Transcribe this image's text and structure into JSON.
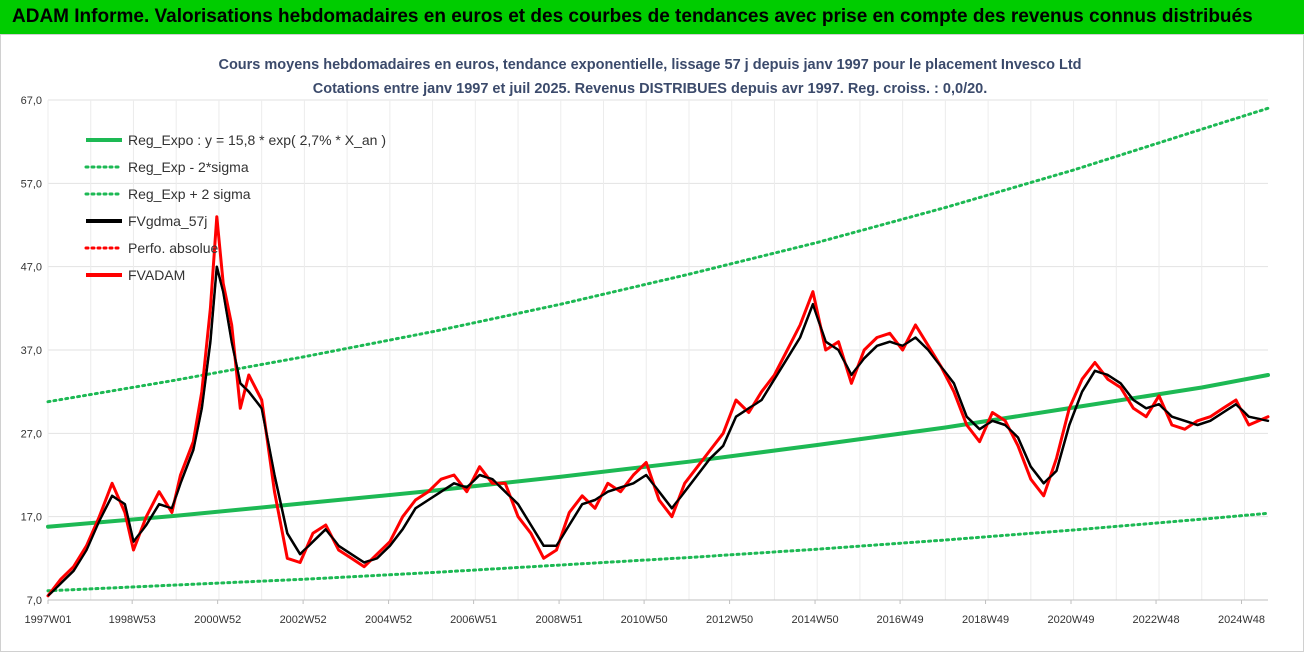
{
  "header": {
    "title": "ADAM Informe. Valorisations hebdomadaires en euros et des courbes de tendances avec prise en compte des revenus connus distribués"
  },
  "colors": {
    "header_bg": "#00cc00",
    "reg": "#1db954",
    "fv": "#000000",
    "adam": "#ff0000",
    "title": "#3b4a6b"
  },
  "chart_data": {
    "type": "line",
    "title": "Cours moyens hebdomadaires en euros, tendance exponentielle, lissage 57 j depuis janv 1997 pour le placement Invesco Ltd",
    "subtitle": "Cotations entre janv 1997 et juil 2025. Revenus DISTRIBUES depuis avr 1997.  Reg. croiss. : 0,0/20.",
    "ylim": [
      7,
      67
    ],
    "yticks": [
      "7,0",
      "17,0",
      "27,0",
      "37,0",
      "47,0",
      "57,0",
      "67,0"
    ],
    "xlim": [
      1997.0,
      2025.55
    ],
    "xticks": [
      {
        "label": "1997W01",
        "x": 1997.0
      },
      {
        "label": "1998W53",
        "x": 1998.97
      },
      {
        "label": "2000W52",
        "x": 2000.97
      },
      {
        "label": "2002W52",
        "x": 2002.97
      },
      {
        "label": "2004W52",
        "x": 2004.97
      },
      {
        "label": "2006W51",
        "x": 2006.96
      },
      {
        "label": "2008W51",
        "x": 2008.96
      },
      {
        "label": "2010W50",
        "x": 2010.95
      },
      {
        "label": "2012W50",
        "x": 2012.95
      },
      {
        "label": "2014W50",
        "x": 2014.95
      },
      {
        "label": "2016W49",
        "x": 2016.94
      },
      {
        "label": "2018W49",
        "x": 2018.94
      },
      {
        "label": "2020W49",
        "x": 2020.94
      },
      {
        "label": "2022W48",
        "x": 2022.93
      },
      {
        "label": "2024W48",
        "x": 2024.93
      }
    ],
    "grid": true,
    "legend": {
      "placement": "top-left"
    },
    "series": [
      {
        "name": "Reg_Expo : y = 15,8 * exp( 2,7% *  X_an )",
        "color": "#1db954",
        "style": "solid",
        "x": [
          1997.0,
          2000.0,
          2003.0,
          2006.0,
          2009.0,
          2012.0,
          2015.0,
          2018.0,
          2021.0,
          2024.0,
          2025.55
        ],
        "y": [
          15.8,
          17.1,
          18.6,
          20.1,
          21.8,
          23.6,
          25.6,
          27.7,
          30.1,
          32.5,
          34.0
        ]
      },
      {
        "name": "Reg_Exp - 2*sigma",
        "color": "#1db954",
        "style": "dotted",
        "x": [
          1997.0,
          2000.0,
          2003.0,
          2006.0,
          2009.0,
          2012.0,
          2015.0,
          2018.0,
          2021.0,
          2024.0,
          2025.55
        ],
        "y": [
          8.1,
          8.8,
          9.5,
          10.3,
          11.2,
          12.1,
          13.1,
          14.2,
          15.4,
          16.7,
          17.4
        ]
      },
      {
        "name": "Reg_Exp + 2 sigma",
        "color": "#1db954",
        "style": "dotted",
        "x": [
          1997.0,
          2000.0,
          2003.0,
          2006.0,
          2009.0,
          2012.0,
          2015.0,
          2018.0,
          2021.0,
          2024.0,
          2025.55
        ],
        "y": [
          30.8,
          33.4,
          36.2,
          39.2,
          42.5,
          46.1,
          49.9,
          54.1,
          58.6,
          63.5,
          66.0
        ]
      },
      {
        "name": "FVgdma_57j",
        "color": "#000000",
        "style": "solid",
        "x": [
          1997.0,
          1997.3,
          1997.6,
          1997.9,
          1998.2,
          1998.5,
          1998.8,
          1999.0,
          1999.3,
          1999.6,
          1999.9,
          2000.1,
          2000.4,
          2000.6,
          2000.8,
          2000.95,
          2001.1,
          2001.3,
          2001.5,
          2001.7,
          2002.0,
          2002.3,
          2002.6,
          2002.9,
          2003.2,
          2003.5,
          2003.8,
          2004.1,
          2004.4,
          2004.7,
          2005.0,
          2005.3,
          2005.6,
          2005.9,
          2006.2,
          2006.5,
          2006.8,
          2007.1,
          2007.4,
          2007.7,
          2008.0,
          2008.3,
          2008.6,
          2008.9,
          2009.2,
          2009.5,
          2009.8,
          2010.1,
          2010.4,
          2010.7,
          2011.0,
          2011.3,
          2011.6,
          2011.9,
          2012.2,
          2012.5,
          2012.8,
          2013.1,
          2013.4,
          2013.7,
          2014.0,
          2014.3,
          2014.6,
          2014.9,
          2015.2,
          2015.5,
          2015.8,
          2016.1,
          2016.4,
          2016.7,
          2017.0,
          2017.3,
          2017.6,
          2017.9,
          2018.2,
          2018.5,
          2018.8,
          2019.1,
          2019.4,
          2019.7,
          2020.0,
          2020.3,
          2020.6,
          2020.9,
          2021.2,
          2021.5,
          2021.8,
          2022.1,
          2022.4,
          2022.7,
          2023.0,
          2023.3,
          2023.6,
          2023.9,
          2024.2,
          2024.5,
          2024.8,
          2025.1,
          2025.55
        ],
        "y": [
          7.5,
          9.0,
          10.5,
          13.0,
          16.5,
          19.5,
          18.5,
          14.0,
          16.0,
          18.5,
          18.0,
          21.0,
          25.0,
          30.0,
          38.0,
          47.0,
          44.0,
          38.0,
          33.0,
          32.0,
          30.0,
          22.0,
          15.0,
          12.5,
          14.0,
          15.5,
          13.5,
          12.5,
          11.5,
          12.0,
          13.5,
          15.5,
          18.0,
          19.0,
          20.0,
          21.0,
          20.5,
          22.0,
          21.5,
          20.0,
          18.5,
          16.0,
          13.5,
          13.5,
          16.0,
          18.5,
          19.0,
          20.0,
          20.5,
          21.0,
          22.0,
          20.0,
          18.0,
          20.0,
          22.0,
          24.0,
          25.5,
          29.0,
          30.0,
          31.0,
          33.5,
          36.0,
          38.5,
          42.5,
          38.0,
          37.0,
          34.0,
          36.0,
          37.5,
          38.0,
          37.5,
          38.5,
          37.0,
          35.0,
          33.0,
          29.0,
          27.5,
          28.5,
          28.0,
          26.5,
          23.0,
          21.0,
          22.5,
          28.0,
          32.0,
          34.5,
          34.0,
          33.0,
          31.0,
          30.0,
          30.5,
          29.0,
          28.5,
          28.0,
          28.5,
          29.5,
          30.5,
          29.0,
          28.5
        ]
      },
      {
        "name": "Perfo. absolue",
        "color": "#ff0000",
        "style": "dotted",
        "x": [
          1997.0,
          1997.3,
          1997.6,
          1997.9,
          1998.2,
          1998.5,
          1998.8,
          1999.0,
          1999.3,
          1999.6,
          1999.9,
          2000.1,
          2000.4,
          2000.6,
          2000.8,
          2000.95,
          2001.1,
          2001.3,
          2001.5,
          2001.7,
          2002.0,
          2002.3,
          2002.6,
          2002.9,
          2003.2,
          2003.5,
          2003.8,
          2004.1,
          2004.4,
          2004.7,
          2005.0,
          2005.3,
          2005.6,
          2005.9,
          2006.2,
          2006.5,
          2006.8,
          2007.1,
          2007.4,
          2007.7,
          2008.0,
          2008.3,
          2008.6,
          2008.9,
          2009.2,
          2009.5,
          2009.8,
          2010.1,
          2010.4,
          2010.7,
          2011.0,
          2011.3,
          2011.6,
          2011.9,
          2012.2,
          2012.5,
          2012.8,
          2013.1,
          2013.4,
          2013.7,
          2014.0,
          2014.3,
          2014.6,
          2014.9,
          2015.2,
          2015.5,
          2015.8,
          2016.1,
          2016.4,
          2016.7,
          2017.0,
          2017.3,
          2017.6,
          2017.9,
          2018.2,
          2018.5,
          2018.8,
          2019.1,
          2019.4,
          2019.7,
          2020.0,
          2020.3,
          2020.6,
          2020.9,
          2021.2,
          2021.5,
          2021.8,
          2022.1,
          2022.4,
          2022.7,
          2023.0,
          2023.3,
          2023.6,
          2023.9,
          2024.2,
          2024.5,
          2024.8,
          2025.1,
          2025.55
        ],
        "y": [
          7.5,
          9.5,
          11.0,
          13.5,
          17.0,
          21.0,
          17.5,
          13.0,
          17.0,
          20.0,
          17.5,
          22.0,
          26.0,
          32.0,
          42.0,
          53.0,
          45.0,
          40.0,
          30.0,
          34.0,
          31.0,
          20.0,
          12.0,
          11.5,
          15.0,
          16.0,
          13.0,
          12.0,
          11.0,
          12.5,
          14.0,
          17.0,
          19.0,
          20.0,
          21.5,
          22.0,
          20.0,
          23.0,
          21.0,
          21.0,
          17.0,
          15.0,
          12.0,
          13.0,
          17.5,
          19.5,
          18.0,
          21.0,
          20.0,
          22.0,
          23.5,
          19.0,
          17.0,
          21.0,
          23.0,
          25.0,
          27.0,
          31.0,
          29.5,
          32.0,
          34.0,
          37.0,
          40.0,
          44.0,
          37.0,
          38.0,
          33.0,
          37.0,
          38.5,
          39.0,
          37.0,
          40.0,
          37.5,
          35.0,
          32.0,
          28.0,
          26.0,
          29.5,
          28.5,
          25.5,
          21.5,
          19.5,
          24.0,
          30.0,
          33.5,
          35.5,
          33.5,
          32.5,
          30.0,
          29.0,
          31.5,
          28.0,
          27.5,
          28.5,
          29.0,
          30.0,
          31.0,
          28.0,
          29.0
        ]
      },
      {
        "name": "FVADAM",
        "color": "#ff0000",
        "style": "solid",
        "x": [
          1997.0,
          1997.3,
          1997.6,
          1997.9,
          1998.2,
          1998.5,
          1998.8,
          1999.0,
          1999.3,
          1999.6,
          1999.9,
          2000.1,
          2000.4,
          2000.6,
          2000.8,
          2000.95,
          2001.1,
          2001.3,
          2001.5,
          2001.7,
          2002.0,
          2002.3,
          2002.6,
          2002.9,
          2003.2,
          2003.5,
          2003.8,
          2004.1,
          2004.4,
          2004.7,
          2005.0,
          2005.3,
          2005.6,
          2005.9,
          2006.2,
          2006.5,
          2006.8,
          2007.1,
          2007.4,
          2007.7,
          2008.0,
          2008.3,
          2008.6,
          2008.9,
          2009.2,
          2009.5,
          2009.8,
          2010.1,
          2010.4,
          2010.7,
          2011.0,
          2011.3,
          2011.6,
          2011.9,
          2012.2,
          2012.5,
          2012.8,
          2013.1,
          2013.4,
          2013.7,
          2014.0,
          2014.3,
          2014.6,
          2014.9,
          2015.2,
          2015.5,
          2015.8,
          2016.1,
          2016.4,
          2016.7,
          2017.0,
          2017.3,
          2017.6,
          2017.9,
          2018.2,
          2018.5,
          2018.8,
          2019.1,
          2019.4,
          2019.7,
          2020.0,
          2020.3,
          2020.6,
          2020.9,
          2021.2,
          2021.5,
          2021.8,
          2022.1,
          2022.4,
          2022.7,
          2023.0,
          2023.3,
          2023.6,
          2023.9,
          2024.2,
          2024.5,
          2024.8,
          2025.1,
          2025.55
        ],
        "y": [
          7.5,
          9.5,
          11.0,
          13.5,
          17.0,
          21.0,
          17.5,
          13.0,
          17.0,
          20.0,
          17.5,
          22.0,
          26.0,
          32.0,
          42.0,
          53.0,
          45.0,
          40.0,
          30.0,
          34.0,
          31.0,
          20.0,
          12.0,
          11.5,
          15.0,
          16.0,
          13.0,
          12.0,
          11.0,
          12.5,
          14.0,
          17.0,
          19.0,
          20.0,
          21.5,
          22.0,
          20.0,
          23.0,
          21.0,
          21.0,
          17.0,
          15.0,
          12.0,
          13.0,
          17.5,
          19.5,
          18.0,
          21.0,
          20.0,
          22.0,
          23.5,
          19.0,
          17.0,
          21.0,
          23.0,
          25.0,
          27.0,
          31.0,
          29.5,
          32.0,
          34.0,
          37.0,
          40.0,
          44.0,
          37.0,
          38.0,
          33.0,
          37.0,
          38.5,
          39.0,
          37.0,
          40.0,
          37.5,
          35.0,
          32.0,
          28.0,
          26.0,
          29.5,
          28.5,
          25.5,
          21.5,
          19.5,
          24.0,
          30.0,
          33.5,
          35.5,
          33.5,
          32.5,
          30.0,
          29.0,
          31.5,
          28.0,
          27.5,
          28.5,
          29.0,
          30.0,
          31.0,
          28.0,
          29.0
        ]
      }
    ]
  }
}
